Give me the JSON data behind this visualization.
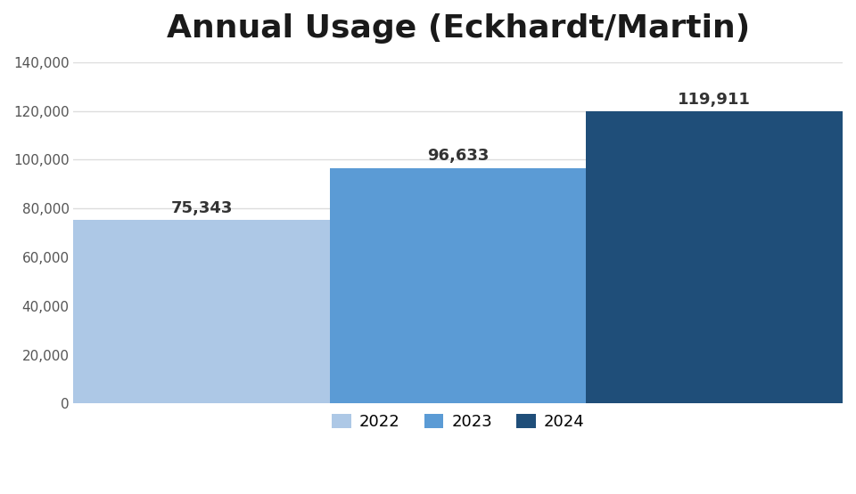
{
  "title": "Annual Usage (Eckhardt/Martin)",
  "categories": [
    "2022",
    "2023",
    "2024"
  ],
  "values": [
    75343,
    96633,
    119911
  ],
  "bar_colors": [
    "#adc8e6",
    "#5b9bd5",
    "#1f4e79"
  ],
  "ylim": [
    0,
    140000
  ],
  "yticks": [
    0,
    20000,
    40000,
    60000,
    80000,
    100000,
    120000,
    140000
  ],
  "background_color": "#ffffff",
  "title_fontsize": 26,
  "label_fontsize": 11,
  "annotation_fontsize": 13,
  "legend_labels": [
    "2022",
    "2023",
    "2024"
  ],
  "grid_color": "#dddddd"
}
